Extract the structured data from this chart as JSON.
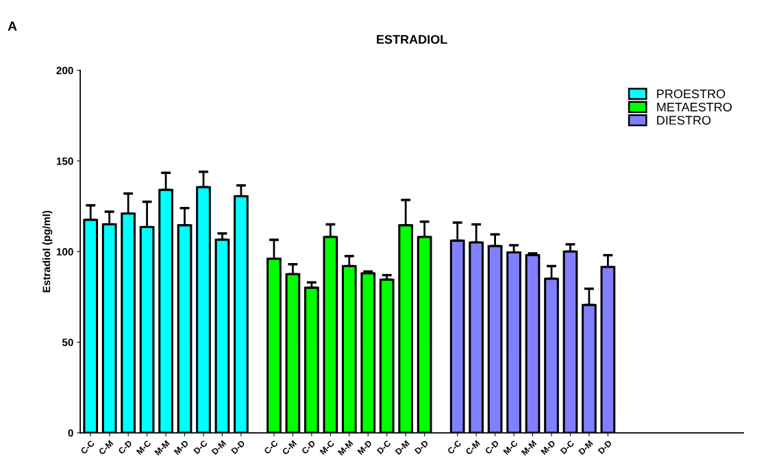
{
  "chart_data": {
    "type": "bar",
    "title": "ESTRADIOL",
    "ylabel": "Estradiol (pg/ml)",
    "annotations": [
      "A"
    ],
    "categories": [
      "C-C",
      "C-M",
      "C-D",
      "M-C",
      "M-M",
      "M-D",
      "D-C",
      "D-M",
      "D-D",
      "C-C",
      "C-M",
      "C-D",
      "M-C",
      "M-M",
      "M-D",
      "D-C",
      "D-M",
      "D-D",
      "C-C",
      "C-M",
      "C-D",
      "M-C",
      "M-M",
      "M-D",
      "D-C",
      "D-M",
      "D-D"
    ],
    "series": [
      {
        "name": "PROESTRO",
        "color": "#00ffff",
        "values": [
          117.5,
          115,
          121,
          113.5,
          134,
          114.5,
          135.5,
          106.5,
          130.5,
          null,
          null,
          null,
          null,
          null,
          null,
          null,
          null,
          null,
          null,
          null,
          null,
          null,
          null,
          null,
          null,
          null,
          null
        ],
        "errors": [
          8,
          7,
          11,
          14,
          9.5,
          9.5,
          8.5,
          3.5,
          6,
          null,
          null,
          null,
          null,
          null,
          null,
          null,
          null,
          null,
          null,
          null,
          null,
          null,
          null,
          null,
          null,
          null,
          null
        ]
      },
      {
        "name": "METAESTRO",
        "color": "#00ff00",
        "values": [
          null,
          null,
          null,
          null,
          null,
          null,
          null,
          null,
          null,
          96,
          87.5,
          80,
          108,
          92,
          88,
          84.5,
          114.5,
          108,
          null,
          null,
          null,
          null,
          null,
          null,
          null,
          null,
          null
        ],
        "errors": [
          null,
          null,
          null,
          null,
          null,
          null,
          null,
          null,
          null,
          10.5,
          5.5,
          3,
          7,
          5.5,
          1,
          2.5,
          14,
          8.5,
          null,
          null,
          null,
          null,
          null,
          null,
          null,
          null,
          null
        ]
      },
      {
        "name": "DIESTRO",
        "color": "#8080ff",
        "values": [
          null,
          null,
          null,
          null,
          null,
          null,
          null,
          null,
          null,
          null,
          null,
          null,
          null,
          null,
          null,
          null,
          null,
          null,
          106,
          105,
          103,
          99.5,
          98,
          85,
          100,
          70.5,
          91.5
        ],
        "errors": [
          null,
          null,
          null,
          null,
          null,
          null,
          null,
          null,
          null,
          null,
          null,
          null,
          null,
          null,
          null,
          null,
          null,
          null,
          10,
          10,
          6.5,
          4,
          1,
          7,
          4,
          9,
          6.5
        ]
      }
    ],
    "ylim": [
      0,
      200
    ],
    "yticks": [
      0,
      50,
      100,
      150,
      200
    ],
    "grid": false,
    "legend": "top right"
  }
}
